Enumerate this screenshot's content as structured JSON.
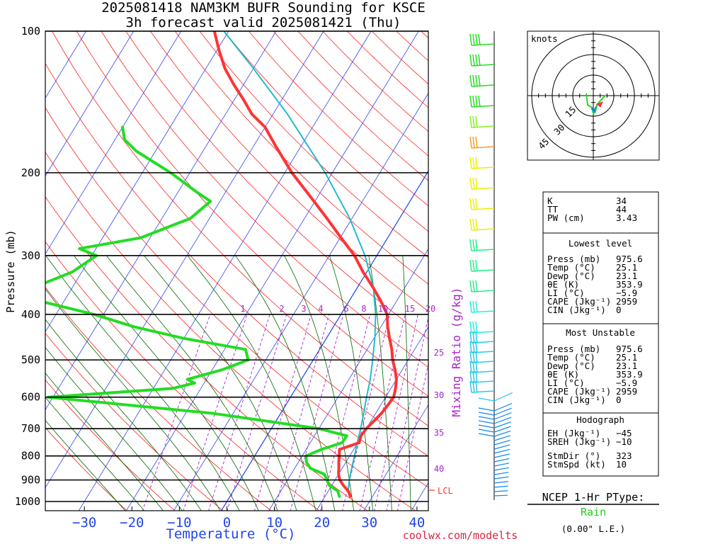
{
  "title": {
    "line1": "2025081418 NAM3KM BUFR Sounding for KSCE",
    "line2": "3h forecast valid 2025081421 (Thu)"
  },
  "chart_data": {
    "type": "line",
    "subtype": "skew-T log-P",
    "xlabel": "Temperature (°C)",
    "ylabel": "Pressure (mb)",
    "xlim": [
      -40,
      42
    ],
    "ylim": [
      1050,
      100
    ],
    "y_scale": "log",
    "x_ticks": [
      -30,
      -20,
      -10,
      0,
      10,
      20,
      30,
      40
    ],
    "x_tick_labels": [
      "−30",
      "−20",
      "−10",
      "0",
      "10",
      "20",
      "30",
      "40"
    ],
    "y_ticks": [
      100,
      200,
      300,
      400,
      500,
      600,
      700,
      800,
      900,
      1000
    ],
    "mixing_ratio_label": "Mixing Ratio (g/kg)",
    "mixing_ratio_values": [
      1,
      2,
      3,
      4,
      6,
      8,
      10,
      15,
      20,
      25,
      30,
      35,
      40
    ],
    "mixing_ratio_top_labels": [
      "1",
      "2",
      "3",
      "4",
      "6",
      "8",
      "10",
      "15",
      "20"
    ],
    "mixing_ratio_side_labels": [
      "25",
      "30",
      "35",
      "40"
    ],
    "lcl_label": "LCL",
    "lcl_pressure": 950,
    "series": [
      {
        "name": "Temperature",
        "color": "#ff3333",
        "points": [
          [
            975,
            25.3
          ],
          [
            950,
            24.2
          ],
          [
            925,
            22.5
          ],
          [
            900,
            21.0
          ],
          [
            875,
            20.0
          ],
          [
            850,
            19.3
          ],
          [
            825,
            18.5
          ],
          [
            800,
            17.8
          ],
          [
            775,
            17.0
          ],
          [
            750,
            20.3
          ],
          [
            725,
            19.8
          ],
          [
            700,
            20.0
          ],
          [
            675,
            20.6
          ],
          [
            650,
            21.2
          ],
          [
            625,
            21.5
          ],
          [
            600,
            21.7
          ],
          [
            575,
            21.0
          ],
          [
            550,
            20.0
          ],
          [
            525,
            18.5
          ],
          [
            500,
            16.7
          ],
          [
            475,
            15.2
          ],
          [
            450,
            13.3
          ],
          [
            425,
            11.4
          ],
          [
            400,
            9.7
          ],
          [
            375,
            6.7
          ],
          [
            350,
            3.2
          ],
          [
            325,
            -0.8
          ],
          [
            300,
            -4.7
          ],
          [
            275,
            -9.8
          ],
          [
            250,
            -15.3
          ],
          [
            225,
            -21.5
          ],
          [
            200,
            -28.5
          ],
          [
            175,
            -35.5
          ],
          [
            160,
            -40.0
          ],
          [
            150,
            -44.5
          ],
          [
            140,
            -48.0
          ],
          [
            130,
            -52.0
          ],
          [
            120,
            -56.0
          ],
          [
            110,
            -59.5
          ],
          [
            100,
            -63.0
          ]
        ]
      },
      {
        "name": "Dewpoint",
        "color": "#22dd22",
        "points": [
          [
            975,
            23.0
          ],
          [
            950,
            22.0
          ],
          [
            925,
            19.5
          ],
          [
            900,
            18.3
          ],
          [
            875,
            17.0
          ],
          [
            850,
            13.3
          ],
          [
            825,
            11.7
          ],
          [
            800,
            10.8
          ],
          [
            775,
            13.2
          ],
          [
            750,
            16.7
          ],
          [
            725,
            16.8
          ],
          [
            700,
            10.0
          ],
          [
            650,
            -14.0
          ],
          [
            600,
            -51.0
          ],
          [
            575,
            -26.0
          ],
          [
            560,
            -22.0
          ],
          [
            550,
            -24.0
          ],
          [
            525,
            -18.0
          ],
          [
            500,
            -13.7
          ],
          [
            475,
            -15.6
          ],
          [
            450,
            -30.0
          ],
          [
            425,
            -42.0
          ],
          [
            400,
            -52.0
          ],
          [
            375,
            -65.0
          ],
          [
            350,
            -68.0
          ],
          [
            325,
            -62.0
          ],
          [
            300,
            -59.0
          ],
          [
            290,
            -63.5
          ],
          [
            275,
            -52.0
          ],
          [
            250,
            -44.0
          ],
          [
            230,
            -42.0
          ],
          [
            220,
            -46.0
          ],
          [
            200,
            -54.0
          ],
          [
            180,
            -64.0
          ],
          [
            170,
            -68.0
          ],
          [
            160,
            -70.0
          ]
        ]
      },
      {
        "name": "Parcel",
        "color": "#22bbcc",
        "points": [
          [
            975,
            25.3
          ],
          [
            950,
            24.2
          ],
          [
            900,
            23.0
          ],
          [
            850,
            22.0
          ],
          [
            800,
            21.0
          ],
          [
            750,
            19.9
          ],
          [
            700,
            18.8
          ],
          [
            650,
            17.5
          ],
          [
            600,
            16.0
          ],
          [
            550,
            14.5
          ],
          [
            500,
            12.5
          ],
          [
            450,
            10.2
          ],
          [
            400,
            7.3
          ],
          [
            350,
            3.3
          ],
          [
            300,
            -2.5
          ],
          [
            250,
            -10.5
          ],
          [
            200,
            -21.5
          ],
          [
            150,
            -37.0
          ],
          [
            120,
            -50.0
          ],
          [
            100,
            -61.0
          ]
        ]
      }
    ]
  },
  "winds": {
    "hodograph_label": "knots",
    "hodograph_rings": [
      "15",
      "30",
      "45"
    ]
  },
  "indices": {
    "rows": [
      {
        "label": "K",
        "value": "34"
      },
      {
        "label": "TT",
        "value": "44"
      },
      {
        "label": "PW (cm)",
        "value": "3.43"
      }
    ],
    "lowest_level": {
      "header": "Lowest level",
      "rows": [
        {
          "label": "Press (mb)",
          "value": "975.6"
        },
        {
          "label": "Temp (°C)",
          "value": "25.1"
        },
        {
          "label": "Dewp (°C)",
          "value": "23.1"
        },
        {
          "label": "θE (K)",
          "value": "353.9"
        },
        {
          "label": "LI (°C)",
          "value": "−5.9"
        },
        {
          "label": "CAPE (Jkg⁻¹)",
          "value": "2959"
        },
        {
          "label": "CIN (Jkg⁻¹)",
          "value": "0"
        }
      ]
    },
    "most_unstable": {
      "header": "Most Unstable",
      "rows": [
        {
          "label": "Press (mb)",
          "value": "975.6"
        },
        {
          "label": "Temp (°C)",
          "value": "25.1"
        },
        {
          "label": "Dewp (°C)",
          "value": "23.1"
        },
        {
          "label": "θE (K)",
          "value": "353.9"
        },
        {
          "label": "LI (°C)",
          "value": "−5.9"
        },
        {
          "label": "CAPE (Jkg⁻¹)",
          "value": "2959"
        },
        {
          "label": "CIN (Jkg⁻¹)",
          "value": "0"
        }
      ]
    },
    "hodograph": {
      "header": "Hodograph",
      "rows": [
        {
          "label": "EH (Jkg⁻¹)",
          "value": "−45"
        },
        {
          "label": "SREH (Jkg⁻¹)",
          "value": "−10"
        },
        {
          "label": "StmDir (°)",
          "value": "323"
        },
        {
          "label": "StmSpd (kt)",
          "value": "10"
        }
      ]
    }
  },
  "ptype": {
    "title": "NCEP 1-Hr PType:",
    "value": "Rain",
    "note": "(0.00\" L.E.)"
  },
  "watermark": "coolwx.com/modelts"
}
